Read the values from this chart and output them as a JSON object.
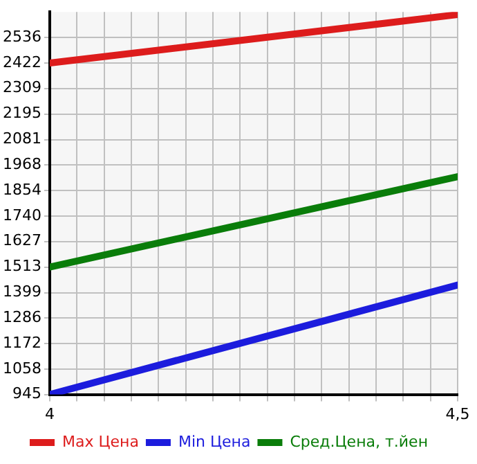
{
  "chart_data": {
    "type": "line",
    "x": [
      4,
      4.5
    ],
    "series": [
      {
        "name": "Max Цена",
        "color": "#dd1c1c",
        "values": [
          2422,
          2638
        ]
      },
      {
        "name": "Min Цена",
        "color": "#1c1cdd",
        "values": [
          945,
          1433
        ]
      },
      {
        "name": "Сред.Цена, т.йен",
        "color": "#0a7d0a",
        "values": [
          1513,
          1916
        ]
      }
    ],
    "xlim": [
      4,
      4.5
    ],
    "xticks": [
      {
        "value": 4,
        "label": "4"
      },
      {
        "value": 4.0333,
        "label": null
      },
      {
        "value": 4.0667,
        "label": null
      },
      {
        "value": 4.1,
        "label": null
      },
      {
        "value": 4.1333,
        "label": null
      },
      {
        "value": 4.1667,
        "label": null
      },
      {
        "value": 4.2,
        "label": null
      },
      {
        "value": 4.2333,
        "label": null
      },
      {
        "value": 4.2667,
        "label": null
      },
      {
        "value": 4.3,
        "label": null
      },
      {
        "value": 4.3333,
        "label": null
      },
      {
        "value": 4.3667,
        "label": null
      },
      {
        "value": 4.4,
        "label": null
      },
      {
        "value": 4.4333,
        "label": null
      },
      {
        "value": 4.4667,
        "label": null
      },
      {
        "value": 4.5,
        "label": "4,5"
      }
    ],
    "ylim": [
      945,
      2650
    ],
    "yticks": [
      945,
      1058,
      1172,
      1286,
      1399,
      1513,
      1627,
      1740,
      1854,
      1968,
      2081,
      2195,
      2309,
      2422,
      2536
    ],
    "grid": true,
    "legend": "bottom",
    "marker": "none",
    "line_style": "solid"
  }
}
